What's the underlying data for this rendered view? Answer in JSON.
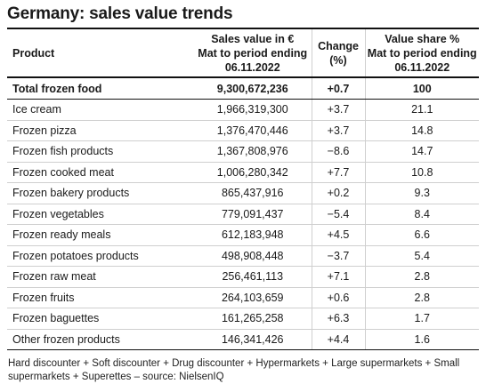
{
  "title": "Germany: sales value trends",
  "columns": {
    "product": "Product",
    "sales_line1": "Sales value in €",
    "sales_line2": "Mat to period ending",
    "sales_line3": "06.11.2022",
    "change_line1": "Change",
    "change_line2": "(%)",
    "share_line1": "Value share %",
    "share_line2": "Mat to period ending",
    "share_line3": "06.11.2022"
  },
  "rows": [
    {
      "product": "Total frozen food",
      "sales": "9,300,672,236",
      "change": "+0.7",
      "share": "100"
    },
    {
      "product": "Ice cream",
      "sales": "1,966,319,300",
      "change": "+3.7",
      "share": "21.1"
    },
    {
      "product": "Frozen pizza",
      "sales": "1,376,470,446",
      "change": "+3.7",
      "share": "14.8"
    },
    {
      "product": "Frozen fish products",
      "sales": "1,367,808,976",
      "change": "−8.6",
      "share": "14.7"
    },
    {
      "product": "Frozen cooked meat",
      "sales": "1,006,280,342",
      "change": "+7.7",
      "share": "10.8"
    },
    {
      "product": "Frozen bakery products",
      "sales": "865,437,916",
      "change": "+0.2",
      "share": "9.3"
    },
    {
      "product": "Frozen vegetables",
      "sales": "779,091,437",
      "change": "−5.4",
      "share": "8.4"
    },
    {
      "product": "Frozen ready meals",
      "sales": "612,183,948",
      "change": "+4.5",
      "share": "6.6"
    },
    {
      "product": "Frozen potatoes products",
      "sales": "498,908,448",
      "change": "−3.7",
      "share": "5.4"
    },
    {
      "product": "Frozen raw meat",
      "sales": "256,461,113",
      "change": "+7.1",
      "share": "2.8"
    },
    {
      "product": "Frozen fruits",
      "sales": "264,103,659",
      "change": "+0.6",
      "share": "2.8"
    },
    {
      "product": "Frozen baguettes",
      "sales": "161,265,258",
      "change": "+6.3",
      "share": "1.7"
    },
    {
      "product": "Other frozen products",
      "sales": "146,341,426",
      "change": "+4.4",
      "share": "1.6"
    }
  ],
  "footer": "Hard discounter + Soft discounter + Drug discounter + Hypermarkets + Large supermarkets + Small supermarkets + Superettes – source: NielsenIQ"
}
